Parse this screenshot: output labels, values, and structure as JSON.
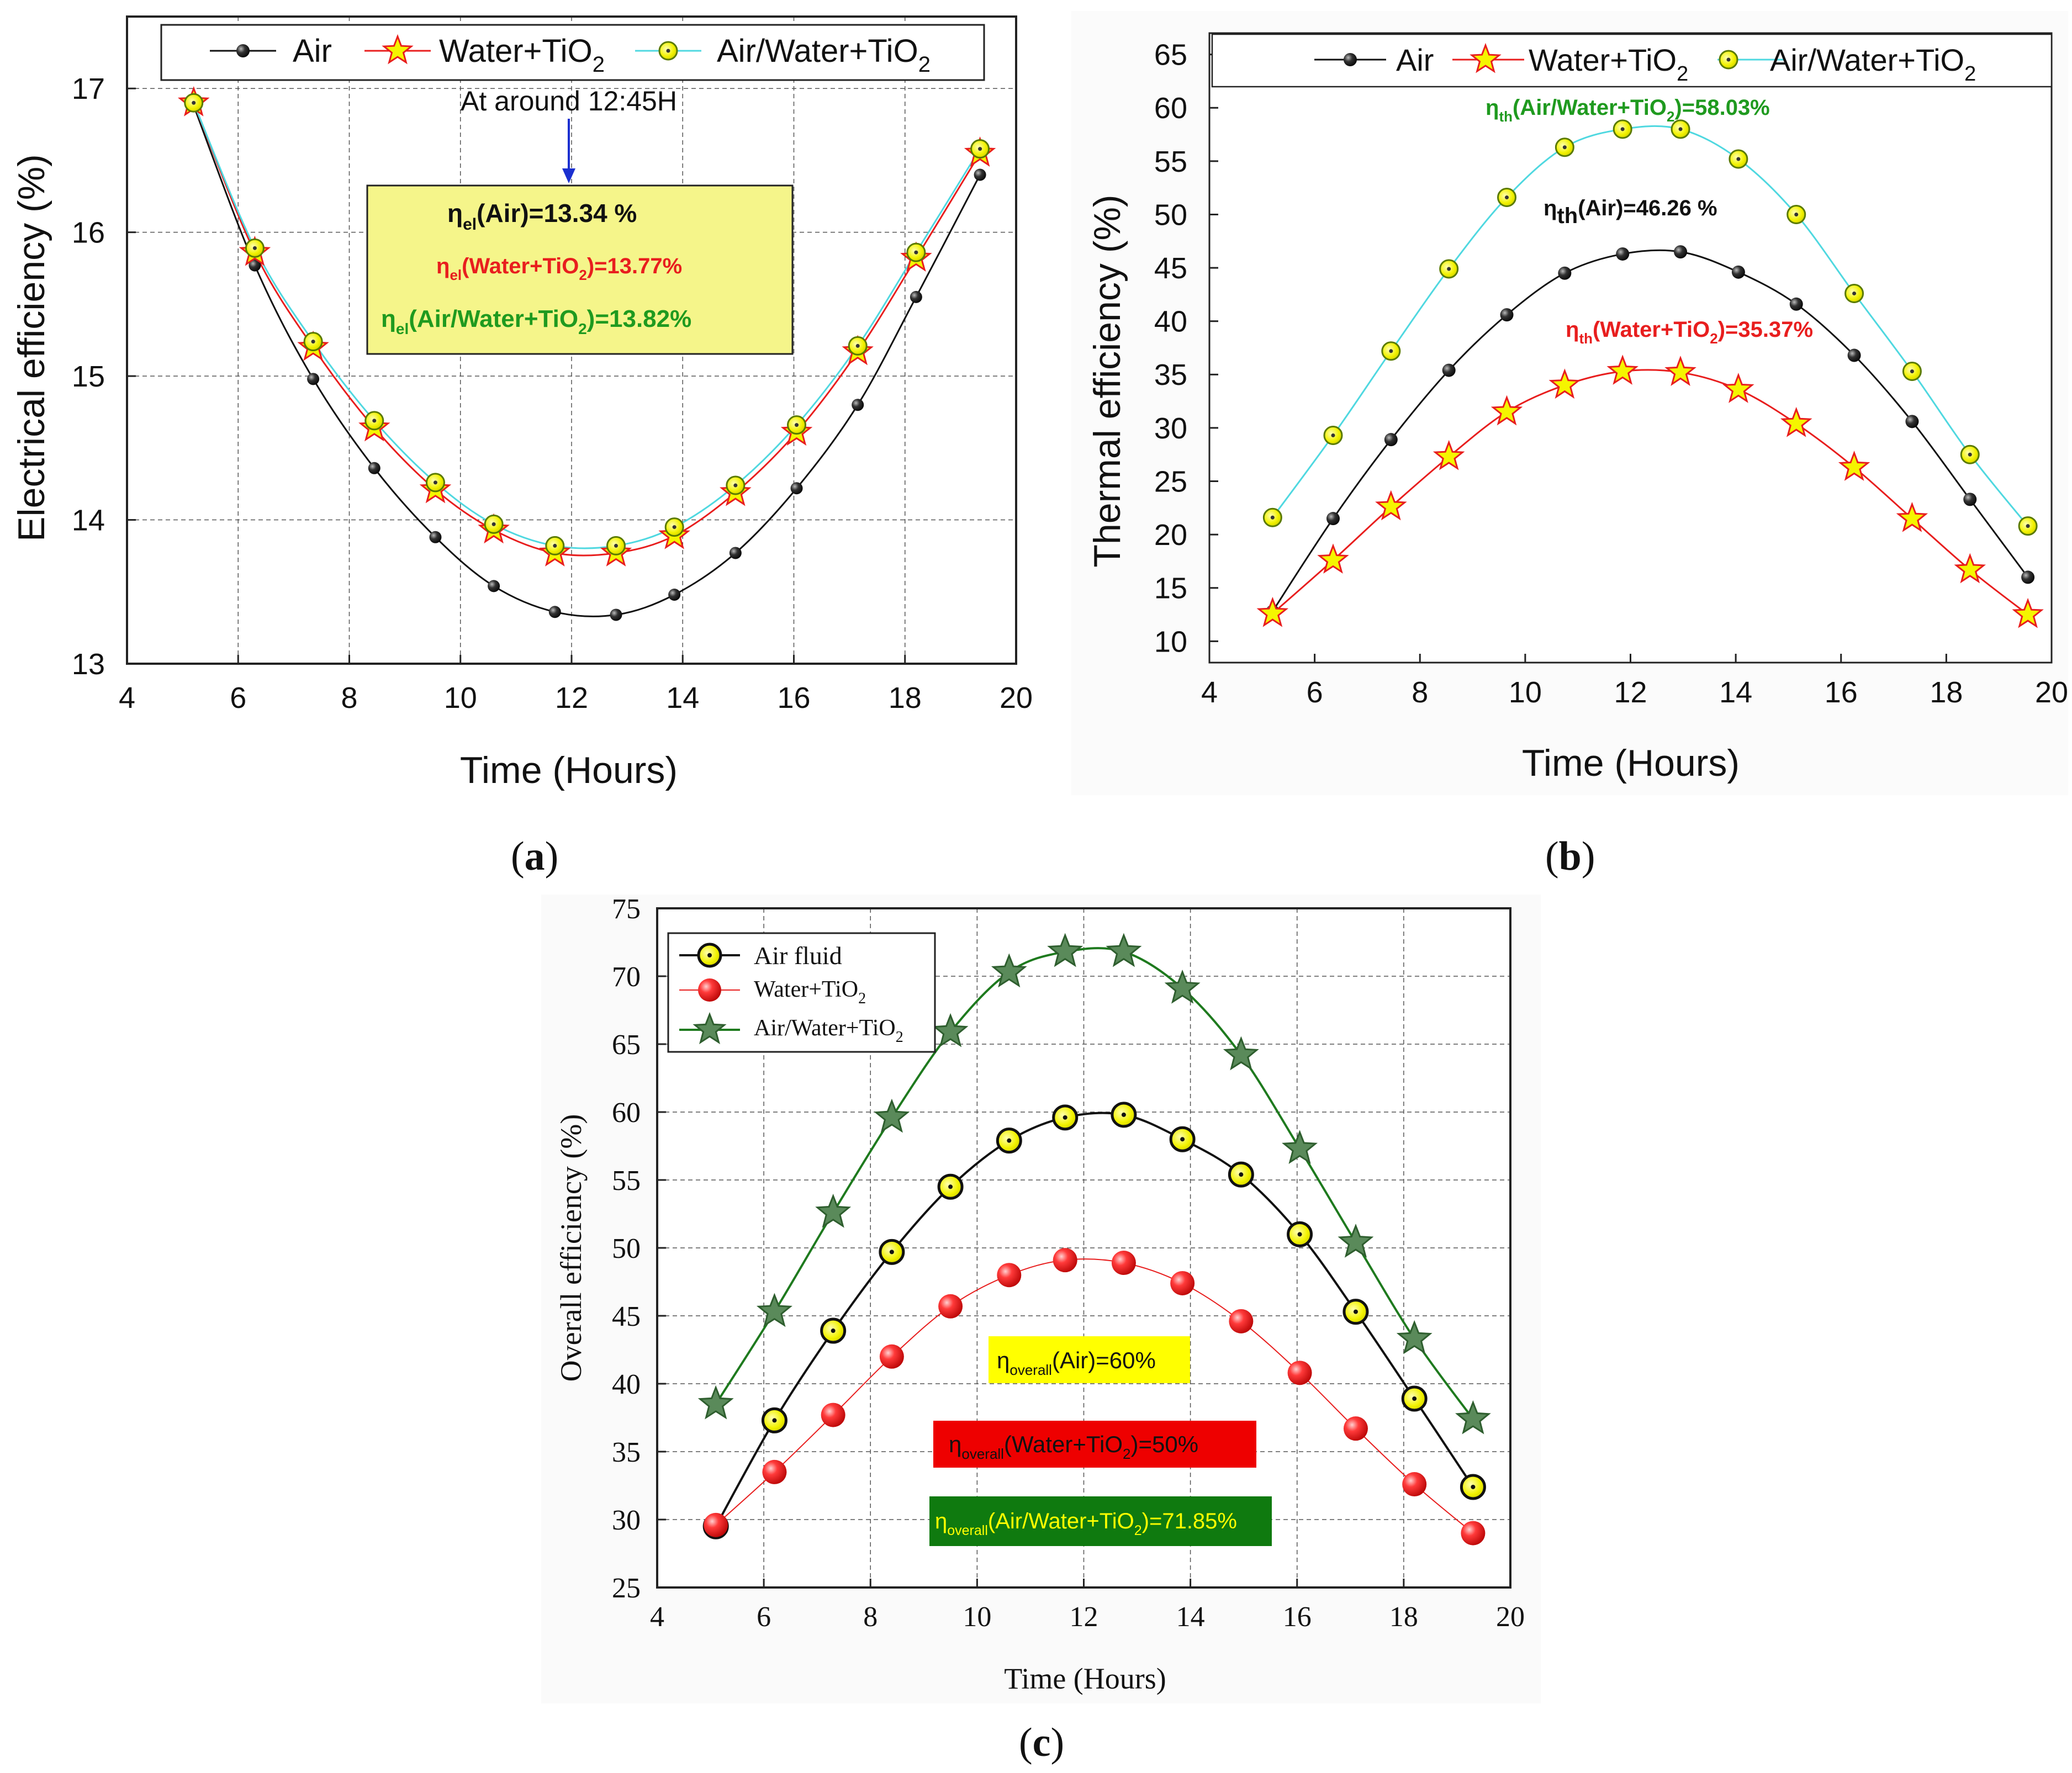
{
  "colors": {
    "air": "#111111",
    "water_tio2": "#e81e1e",
    "air_water_tio2_line": "#4fd8e0",
    "marker_fill_yellow": "#f5f500",
    "marker_edge_olive": "#5a7a00",
    "green_text": "#1f9a1f",
    "star_green": "#5a8a5a",
    "line_green": "#1e7a1e",
    "box_yellow": "#f5f58a",
    "label_yellow": "#ffff00",
    "label_red": "#ee0000",
    "label_green": "#0f7a0f",
    "arrow_blue": "#1a2fd0"
  },
  "chart_data": [
    {
      "id": "a",
      "type": "line",
      "panel_label": "a",
      "xlabel": "Time (Hours)",
      "ylabel": "Electrical efficiency (%)",
      "xlim": [
        4,
        20
      ],
      "ylim": [
        13,
        17.5
      ],
      "xticks": [
        4,
        6,
        8,
        10,
        12,
        14,
        16,
        18,
        20
      ],
      "yticks": [
        13,
        14,
        15,
        16,
        17
      ],
      "grid": true,
      "legend_position": "top",
      "x": [
        5.2,
        6.3,
        7.35,
        8.45,
        9.55,
        10.6,
        11.7,
        12.8,
        13.85,
        14.95,
        16.05,
        17.15,
        18.2,
        19.35
      ],
      "series": [
        {
          "name": "Air",
          "legend_label": "Air",
          "values": [
            16.88,
            15.77,
            14.98,
            14.36,
            13.88,
            13.54,
            13.36,
            13.34,
            13.48,
            13.77,
            14.22,
            14.8,
            15.55,
            16.4
          ]
        },
        {
          "name": "Water+TiO2",
          "legend_label": "Water+TiO",
          "values": [
            16.9,
            15.86,
            15.2,
            14.64,
            14.21,
            13.93,
            13.77,
            13.77,
            13.89,
            14.19,
            14.61,
            15.17,
            15.82,
            16.55
          ]
        },
        {
          "name": "Air/Water+TiO2",
          "legend_label": "Air/Water+TiO",
          "values": [
            16.9,
            15.89,
            15.24,
            14.69,
            14.26,
            13.97,
            13.82,
            13.82,
            13.95,
            14.24,
            14.66,
            15.21,
            15.86,
            16.58
          ]
        }
      ],
      "annotations": {
        "arrow_text": "At around 12:45H",
        "box_line1": "(Air)=13.34 %",
        "box_line2": "(Water+TiO",
        "box_line2_tail": ")=13.77%",
        "box_line3": "(Air/Water+TiO",
        "box_line3_tail": ")=13.82%",
        "eta": "η",
        "sub_el": "el",
        "sub_2": "2"
      }
    },
    {
      "id": "b",
      "type": "line",
      "panel_label": "b",
      "xlabel": "Time (Hours)",
      "ylabel": "Thermal efficiency (%)",
      "xlim": [
        4,
        20
      ],
      "ylim": [
        8,
        67
      ],
      "xticks": [
        4,
        6,
        8,
        10,
        12,
        14,
        16,
        18,
        20
      ],
      "yticks": [
        10,
        15,
        20,
        25,
        30,
        35,
        40,
        45,
        50,
        55,
        60,
        65
      ],
      "grid": false,
      "legend_position": "top",
      "x": [
        5.2,
        6.35,
        7.45,
        8.55,
        9.65,
        10.75,
        11.85,
        12.95,
        14.05,
        15.15,
        16.25,
        17.35,
        18.45,
        19.55
      ],
      "series": [
        {
          "name": "Air",
          "legend_label": "Air",
          "values": [
            12.8,
            21.5,
            28.9,
            35.4,
            40.6,
            44.5,
            46.3,
            46.5,
            44.6,
            41.6,
            36.8,
            30.6,
            23.3,
            16.0
          ]
        },
        {
          "name": "Water+TiO2",
          "legend_label": "Water+TiO",
          "values": [
            12.6,
            17.6,
            22.6,
            27.3,
            31.5,
            34.0,
            35.3,
            35.2,
            33.6,
            30.4,
            26.3,
            21.5,
            16.7,
            12.5
          ]
        },
        {
          "name": "Air/Water+TiO2",
          "legend_label": "Air/Water+TiO",
          "values": [
            21.6,
            29.3,
            37.2,
            44.9,
            51.6,
            56.3,
            58.0,
            58.0,
            55.2,
            50.0,
            42.6,
            35.3,
            27.5,
            20.8
          ]
        }
      ],
      "annotations": {
        "top_label": "(Air/Water+TiO",
        "top_label_tail": ")=58.03%",
        "mid_label": "(Air)=46.26 %",
        "low_label": "(Water+TiO",
        "low_label_tail": ")=35.37%",
        "eta": "η",
        "sub_th": "th",
        "sub_2": "2"
      }
    },
    {
      "id": "c",
      "type": "line",
      "panel_label": "c",
      "xlabel": "Time (Hours)",
      "ylabel": "Overall efficiency (%)",
      "xlim": [
        4,
        20
      ],
      "ylim": [
        25,
        75
      ],
      "xticks": [
        4,
        6,
        8,
        10,
        12,
        14,
        16,
        18,
        20
      ],
      "yticks": [
        25,
        30,
        35,
        40,
        45,
        50,
        55,
        60,
        65,
        70,
        75
      ],
      "grid": true,
      "legend_position": "top-left",
      "x": [
        5.1,
        6.2,
        7.3,
        8.4,
        9.5,
        10.6,
        11.65,
        12.75,
        13.85,
        14.95,
        16.05,
        17.1,
        18.2,
        19.3
      ],
      "series": [
        {
          "name": "Air fluid",
          "legend_label": "Air fluid",
          "values": [
            29.5,
            37.3,
            43.9,
            49.7,
            54.5,
            57.9,
            59.6,
            59.8,
            58.0,
            55.4,
            51.0,
            45.3,
            38.9,
            32.4
          ]
        },
        {
          "name": "Water+TiO2",
          "legend_label": "Water+TiO",
          "values": [
            29.6,
            33.5,
            37.7,
            42.0,
            45.7,
            48.0,
            49.1,
            48.9,
            47.4,
            44.6,
            40.8,
            36.7,
            32.6,
            29.0
          ]
        },
        {
          "name": "Air/Water+TiO2",
          "legend_label": "Air/Water+TiO",
          "values": [
            38.5,
            45.3,
            52.6,
            59.6,
            65.9,
            70.3,
            71.8,
            71.8,
            69.1,
            64.2,
            57.3,
            50.4,
            43.3,
            37.4
          ]
        }
      ],
      "annotations": {
        "eta": "η",
        "sub_overall": "overall",
        "sub_2": "2",
        "box1": "(Air)=60%",
        "box2": "(Water+TiO",
        "box2_tail": ")=50%",
        "box3": "(Air/Water+TiO",
        "box3_tail": ")=71.85%"
      }
    }
  ],
  "panel_labels": {
    "a": "a",
    "b": "b",
    "c": "c",
    "open": "(",
    "close": ")"
  }
}
